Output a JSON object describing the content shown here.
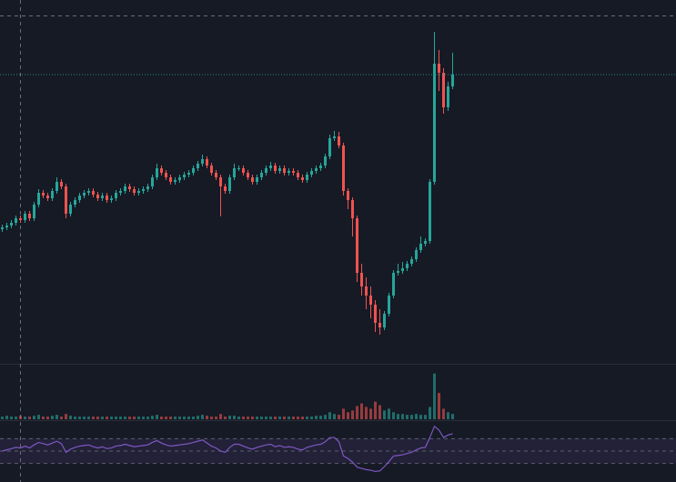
{
  "chart_data": [
    {
      "type": "candlestick",
      "up_color": "#26a69a",
      "down_color": "#ef5350",
      "ylim": [
        0,
        400
      ],
      "open": [
        148,
        150,
        152,
        155,
        160,
        158,
        165,
        160,
        175,
        188,
        185,
        182,
        190,
        200,
        195,
        165,
        175,
        180,
        185,
        188,
        190,
        186,
        182,
        185,
        180,
        182,
        188,
        190,
        195,
        192,
        188,
        190,
        192,
        195,
        205,
        215,
        210,
        205,
        200,
        202,
        205,
        208,
        210,
        215,
        220,
        225,
        218,
        210,
        205,
        195,
        190,
        205,
        215,
        215,
        210,
        205,
        200,
        205,
        210,
        215,
        218,
        212,
        215,
        210,
        212,
        210,
        205,
        202,
        208,
        212,
        215,
        218,
        228,
        248,
        250,
        240,
        190,
        180,
        160,
        100,
        85,
        75,
        65,
        45,
        40,
        55,
        75,
        100,
        102,
        105,
        110,
        115,
        125,
        132,
        135,
        200,
        330,
        320,
        282,
        305
      ],
      "high": [
        153,
        155,
        158,
        163,
        163,
        168,
        168,
        178,
        192,
        191,
        188,
        193,
        205,
        203,
        198,
        178,
        183,
        188,
        191,
        193,
        193,
        189,
        188,
        188,
        185,
        191,
        193,
        198,
        198,
        195,
        193,
        195,
        198,
        208,
        220,
        218,
        213,
        208,
        205,
        208,
        211,
        213,
        218,
        223,
        230,
        228,
        221,
        213,
        208,
        198,
        208,
        220,
        218,
        218,
        213,
        208,
        208,
        213,
        218,
        222,
        221,
        218,
        218,
        215,
        215,
        213,
        208,
        211,
        215,
        218,
        221,
        231,
        252,
        256,
        255,
        243,
        193,
        183,
        163,
        110,
        95,
        85,
        70,
        60,
        58,
        78,
        103,
        110,
        112,
        113,
        118,
        128,
        140,
        138,
        203,
        365,
        345,
        325,
        310,
        342
      ],
      "low": [
        145,
        147,
        149,
        152,
        155,
        155,
        157,
        157,
        172,
        182,
        179,
        179,
        187,
        192,
        160,
        162,
        172,
        177,
        182,
        185,
        183,
        179,
        179,
        177,
        177,
        179,
        185,
        187,
        189,
        185,
        185,
        187,
        189,
        192,
        202,
        207,
        202,
        197,
        197,
        199,
        202,
        205,
        207,
        212,
        217,
        215,
        207,
        202,
        162,
        187,
        187,
        202,
        212,
        207,
        202,
        197,
        197,
        202,
        207,
        212,
        209,
        209,
        207,
        207,
        207,
        202,
        199,
        199,
        205,
        209,
        212,
        215,
        225,
        245,
        237,
        185,
        170,
        140,
        90,
        75,
        60,
        50,
        35,
        32,
        37,
        52,
        72,
        97,
        99,
        102,
        107,
        112,
        122,
        129,
        132,
        197,
        300,
        275,
        278,
        302
      ],
      "close": [
        150,
        152,
        155,
        160,
        158,
        165,
        160,
        175,
        188,
        185,
        182,
        190,
        200,
        195,
        165,
        175,
        180,
        185,
        188,
        190,
        186,
        182,
        185,
        180,
        182,
        188,
        190,
        195,
        192,
        188,
        190,
        192,
        195,
        205,
        215,
        210,
        205,
        200,
        202,
        205,
        208,
        210,
        215,
        220,
        225,
        218,
        210,
        205,
        195,
        190,
        205,
        215,
        215,
        210,
        205,
        200,
        205,
        210,
        215,
        218,
        212,
        215,
        210,
        212,
        210,
        205,
        202,
        208,
        212,
        215,
        218,
        228,
        248,
        250,
        240,
        190,
        180,
        160,
        100,
        85,
        75,
        65,
        45,
        40,
        55,
        75,
        100,
        102,
        105,
        110,
        115,
        125,
        132,
        135,
        200,
        330,
        320,
        282,
        305,
        318
      ]
    },
    {
      "type": "bar",
      "ylim": [
        0,
        60
      ],
      "values": [
        3,
        4,
        3,
        3,
        4,
        3,
        3,
        4,
        5,
        3,
        3,
        4,
        5,
        3,
        6,
        4,
        3,
        3,
        3,
        3,
        3,
        3,
        3,
        3,
        3,
        3,
        3,
        3,
        3,
        3,
        3,
        3,
        3,
        4,
        5,
        3,
        3,
        3,
        3,
        3,
        3,
        3,
        3,
        4,
        5,
        4,
        3,
        3,
        6,
        3,
        4,
        4,
        3,
        3,
        3,
        3,
        3,
        3,
        3,
        3,
        3,
        3,
        3,
        3,
        3,
        3,
        3,
        3,
        3,
        4,
        4,
        5,
        8,
        6,
        5,
        12,
        8,
        10,
        15,
        18,
        14,
        12,
        20,
        16,
        10,
        12,
        8,
        6,
        6,
        5,
        5,
        6,
        5,
        5,
        14,
        52,
        30,
        12,
        8,
        6
      ]
    },
    {
      "type": "line",
      "color": "#7e57c2",
      "ylim": [
        0,
        100
      ],
      "yticks": [
        30,
        50,
        70
      ],
      "values": [
        50,
        52,
        54,
        56,
        55,
        58,
        55,
        60,
        64,
        62,
        60,
        63,
        66,
        62,
        48,
        53,
        56,
        58,
        59,
        60,
        57,
        55,
        57,
        54,
        55,
        58,
        59,
        61,
        59,
        57,
        58,
        59,
        60,
        64,
        67,
        63,
        60,
        58,
        59,
        60,
        61,
        62,
        64,
        66,
        68,
        63,
        58,
        55,
        50,
        48,
        56,
        61,
        61,
        58,
        55,
        53,
        56,
        58,
        60,
        61,
        57,
        59,
        56,
        57,
        56,
        53,
        52,
        56,
        58,
        60,
        61,
        65,
        72,
        72,
        65,
        42,
        38,
        32,
        24,
        22,
        20,
        19,
        17,
        18,
        25,
        33,
        42,
        43,
        44,
        46,
        48,
        52,
        55,
        56,
        72,
        90,
        84,
        72,
        76,
        78
      ]
    }
  ]
}
